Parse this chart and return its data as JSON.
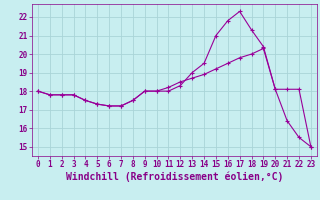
{
  "title": "",
  "xlabel": "Windchill (Refroidissement éolien,°C)",
  "ylabel": "",
  "bg_color": "#c8eef0",
  "grid_color": "#aad4d8",
  "line_color": "#990099",
  "marker": "+",
  "xlim": [
    -0.5,
    23.5
  ],
  "ylim": [
    14.5,
    22.7
  ],
  "xticks": [
    0,
    1,
    2,
    3,
    4,
    5,
    6,
    7,
    8,
    9,
    10,
    11,
    12,
    13,
    14,
    15,
    16,
    17,
    18,
    19,
    20,
    21,
    22,
    23
  ],
  "yticks": [
    15,
    16,
    17,
    18,
    19,
    20,
    21,
    22
  ],
  "line1_x": [
    0,
    1,
    2,
    3,
    4,
    5,
    6,
    7,
    8,
    9,
    10,
    11,
    12,
    13,
    14,
    15,
    16,
    17,
    18,
    19,
    20,
    21,
    22,
    23
  ],
  "line1_y": [
    18.0,
    17.8,
    17.8,
    17.8,
    17.5,
    17.3,
    17.2,
    17.2,
    17.5,
    18.0,
    18.0,
    18.0,
    18.3,
    19.0,
    19.5,
    21.0,
    21.8,
    22.3,
    21.3,
    20.4,
    18.1,
    16.4,
    15.5,
    15.0
  ],
  "line2_x": [
    0,
    1,
    2,
    3,
    4,
    5,
    6,
    7,
    8,
    9,
    10,
    11,
    12,
    13,
    14,
    15,
    16,
    17,
    18,
    19,
    20,
    21,
    22,
    23
  ],
  "line2_y": [
    18.0,
    17.8,
    17.8,
    17.8,
    17.5,
    17.3,
    17.2,
    17.2,
    17.5,
    18.0,
    18.0,
    18.2,
    18.5,
    18.7,
    18.9,
    19.2,
    19.5,
    19.8,
    20.0,
    20.3,
    18.1,
    18.1,
    18.1,
    15.0
  ],
  "font_color": "#880088",
  "tick_fontsize": 5.5,
  "label_fontsize": 7.0
}
